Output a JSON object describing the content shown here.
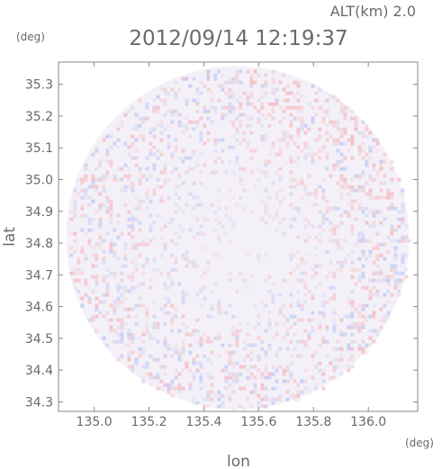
{
  "chart_data": {
    "type": "heatmap",
    "title": "2012/09/14 12:19:37",
    "subtitle": "ALT(km) 2.0",
    "xlabel": "lon",
    "ylabel": "lat",
    "x_unit": "(deg)",
    "y_unit": "(deg)",
    "xlim": [
      134.87,
      136.18
    ],
    "ylim": [
      34.27,
      35.37
    ],
    "x_ticks": [
      135.0,
      135.2,
      135.4,
      135.6,
      135.8,
      136.0
    ],
    "y_ticks": [
      34.3,
      34.4,
      34.5,
      34.6,
      34.7,
      34.8,
      34.9,
      35.0,
      35.1,
      35.2,
      35.3
    ],
    "x_tick_labels": [
      "135.0",
      "135.2",
      "135.4",
      "135.6",
      "135.8",
      "136.0"
    ],
    "y_tick_labels": [
      "34.3",
      "34.4",
      "34.5",
      "34.6",
      "34.7",
      "34.8",
      "34.9",
      "35.0",
      "35.1",
      "35.2",
      "35.3"
    ],
    "radar_center": [
      135.523,
      34.817
    ],
    "radar_radius_deg_lat": 0.54,
    "colors": {
      "positive": "#f2a4a8",
      "negative": "#a8b8f0",
      "neutral": "#f4f0f8"
    },
    "grid": false
  }
}
